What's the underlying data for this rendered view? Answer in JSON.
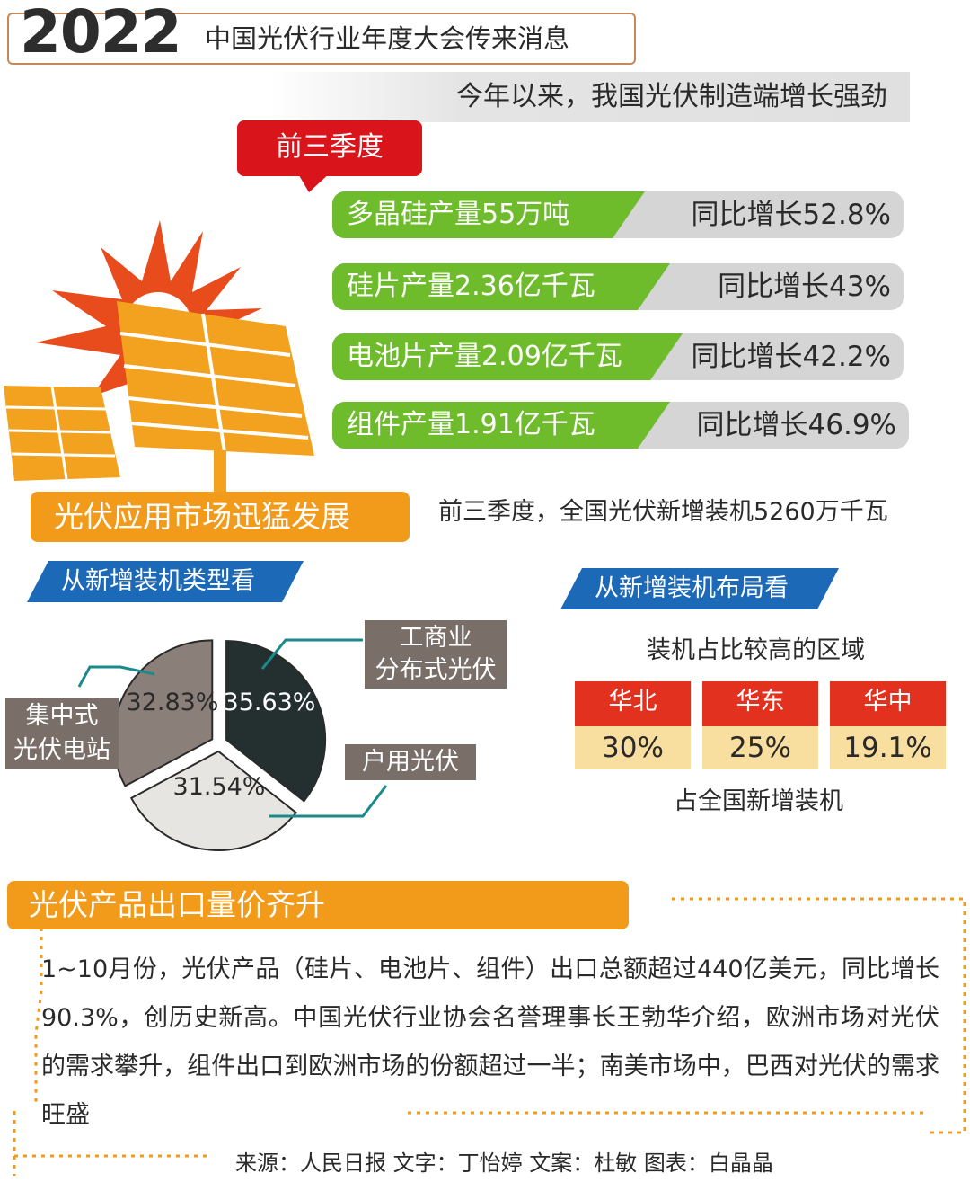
{
  "header": {
    "year": "2022",
    "title": "中国光伏行业年度大会传来消息",
    "subtitle": "今年以来，我国光伏制造端增长强劲"
  },
  "production": {
    "period_label": "前三季度",
    "rows": [
      {
        "label": "多晶硅产量55万吨",
        "growth": "同比增长52.8%"
      },
      {
        "label": "硅片产量2.36亿千瓦",
        "growth": "同比增长43%"
      },
      {
        "label": "电池片产量2.09亿千瓦",
        "growth": "同比增长42.2%"
      },
      {
        "label": "组件产量1.91亿千瓦",
        "growth": "同比增长46.9%"
      }
    ]
  },
  "market": {
    "banner": "光伏应用市场迅猛发展",
    "statement": "前三季度，全国光伏新增装机5260万千瓦",
    "type_heading": "从新增装机类型看",
    "layout_heading": "从新增装机布局看",
    "region_heading": "装机占比较高的区域",
    "region_footer": "占全国新增装机",
    "pie_labels": {
      "commercial": "工商业\n分布式光伏",
      "household": "户用光伏",
      "centralized": "集中式\n光伏电站"
    }
  },
  "chart_data": [
    {
      "type": "pie",
      "title": "从新增装机类型看",
      "categories": [
        "工商业分布式光伏",
        "户用光伏",
        "集中式光伏电站"
      ],
      "values": [
        35.63,
        31.54,
        32.83
      ],
      "labels": [
        "35.63%",
        "31.54%",
        "32.83%"
      ],
      "colors": [
        "#23302f",
        "#e7e5e2",
        "#8a7f79"
      ]
    },
    {
      "type": "table",
      "title": "装机占比较高的区域",
      "categories": [
        "华北",
        "华东",
        "华中"
      ],
      "values": [
        30,
        25,
        19.1
      ],
      "labels": [
        "30%",
        "25%",
        "19.1%"
      ]
    }
  ],
  "export": {
    "banner": "光伏产品出口量价齐升",
    "text": "1~10月份，光伏产品（硅片、电池片、组件）出口总额超过440亿美元，同比增长90.3%，创历史新高。中国光伏行业协会名誉理事长王勃华介绍，欧洲市场对光伏的需求攀升，组件出口到欧洲市场的份额超过一半；南美市场中，巴西对光伏的需求旺盛"
  },
  "credits": "来源：人民日报  文字：丁怡婷  文案：杜敏  图表：白晶晶",
  "colors": {
    "green": "#6ebb2c",
    "orange": "#f29a1a",
    "red": "#d9141b",
    "blue": "#1c69b7",
    "region_red": "#e2311e",
    "region_cream": "#f8dfa0"
  }
}
